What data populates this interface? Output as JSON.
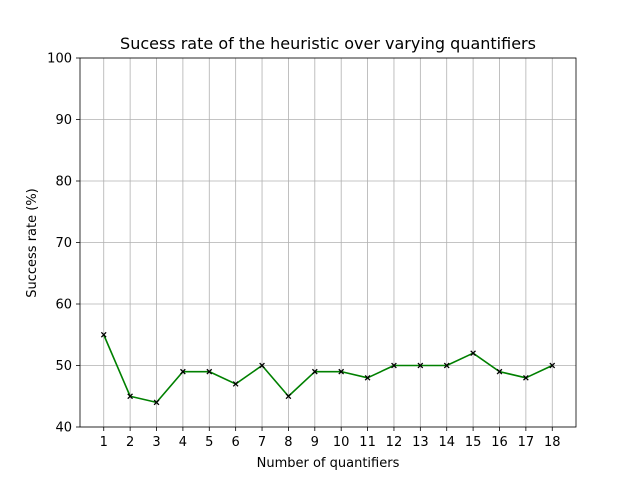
{
  "chart_data": {
    "type": "line",
    "title": "Sucess rate of the heuristic over varying quantifiers",
    "xlabel": "Number of quantifiers",
    "ylabel": "Success rate (%)",
    "x": [
      1,
      2,
      3,
      4,
      5,
      6,
      7,
      8,
      9,
      10,
      11,
      12,
      13,
      14,
      15,
      16,
      17,
      18
    ],
    "x_ticks": [
      "1",
      "2",
      "3",
      "4",
      "5",
      "6",
      "7",
      "8",
      "9",
      "10",
      "11",
      "12",
      "13",
      "14",
      "15",
      "16",
      "17",
      "18"
    ],
    "y_ticks": [
      "40",
      "50",
      "60",
      "70",
      "80",
      "90",
      "100"
    ],
    "xlim": [
      0.1,
      18.9
    ],
    "ylim": [
      40,
      100
    ],
    "grid": true,
    "series": [
      {
        "values": [
          55,
          45,
          44,
          49,
          49,
          47,
          50,
          45,
          49,
          49,
          48,
          50,
          50,
          50,
          52,
          49,
          48,
          50
        ],
        "line_color": "#008000",
        "marker": "x",
        "marker_color": "#000000"
      }
    ]
  }
}
